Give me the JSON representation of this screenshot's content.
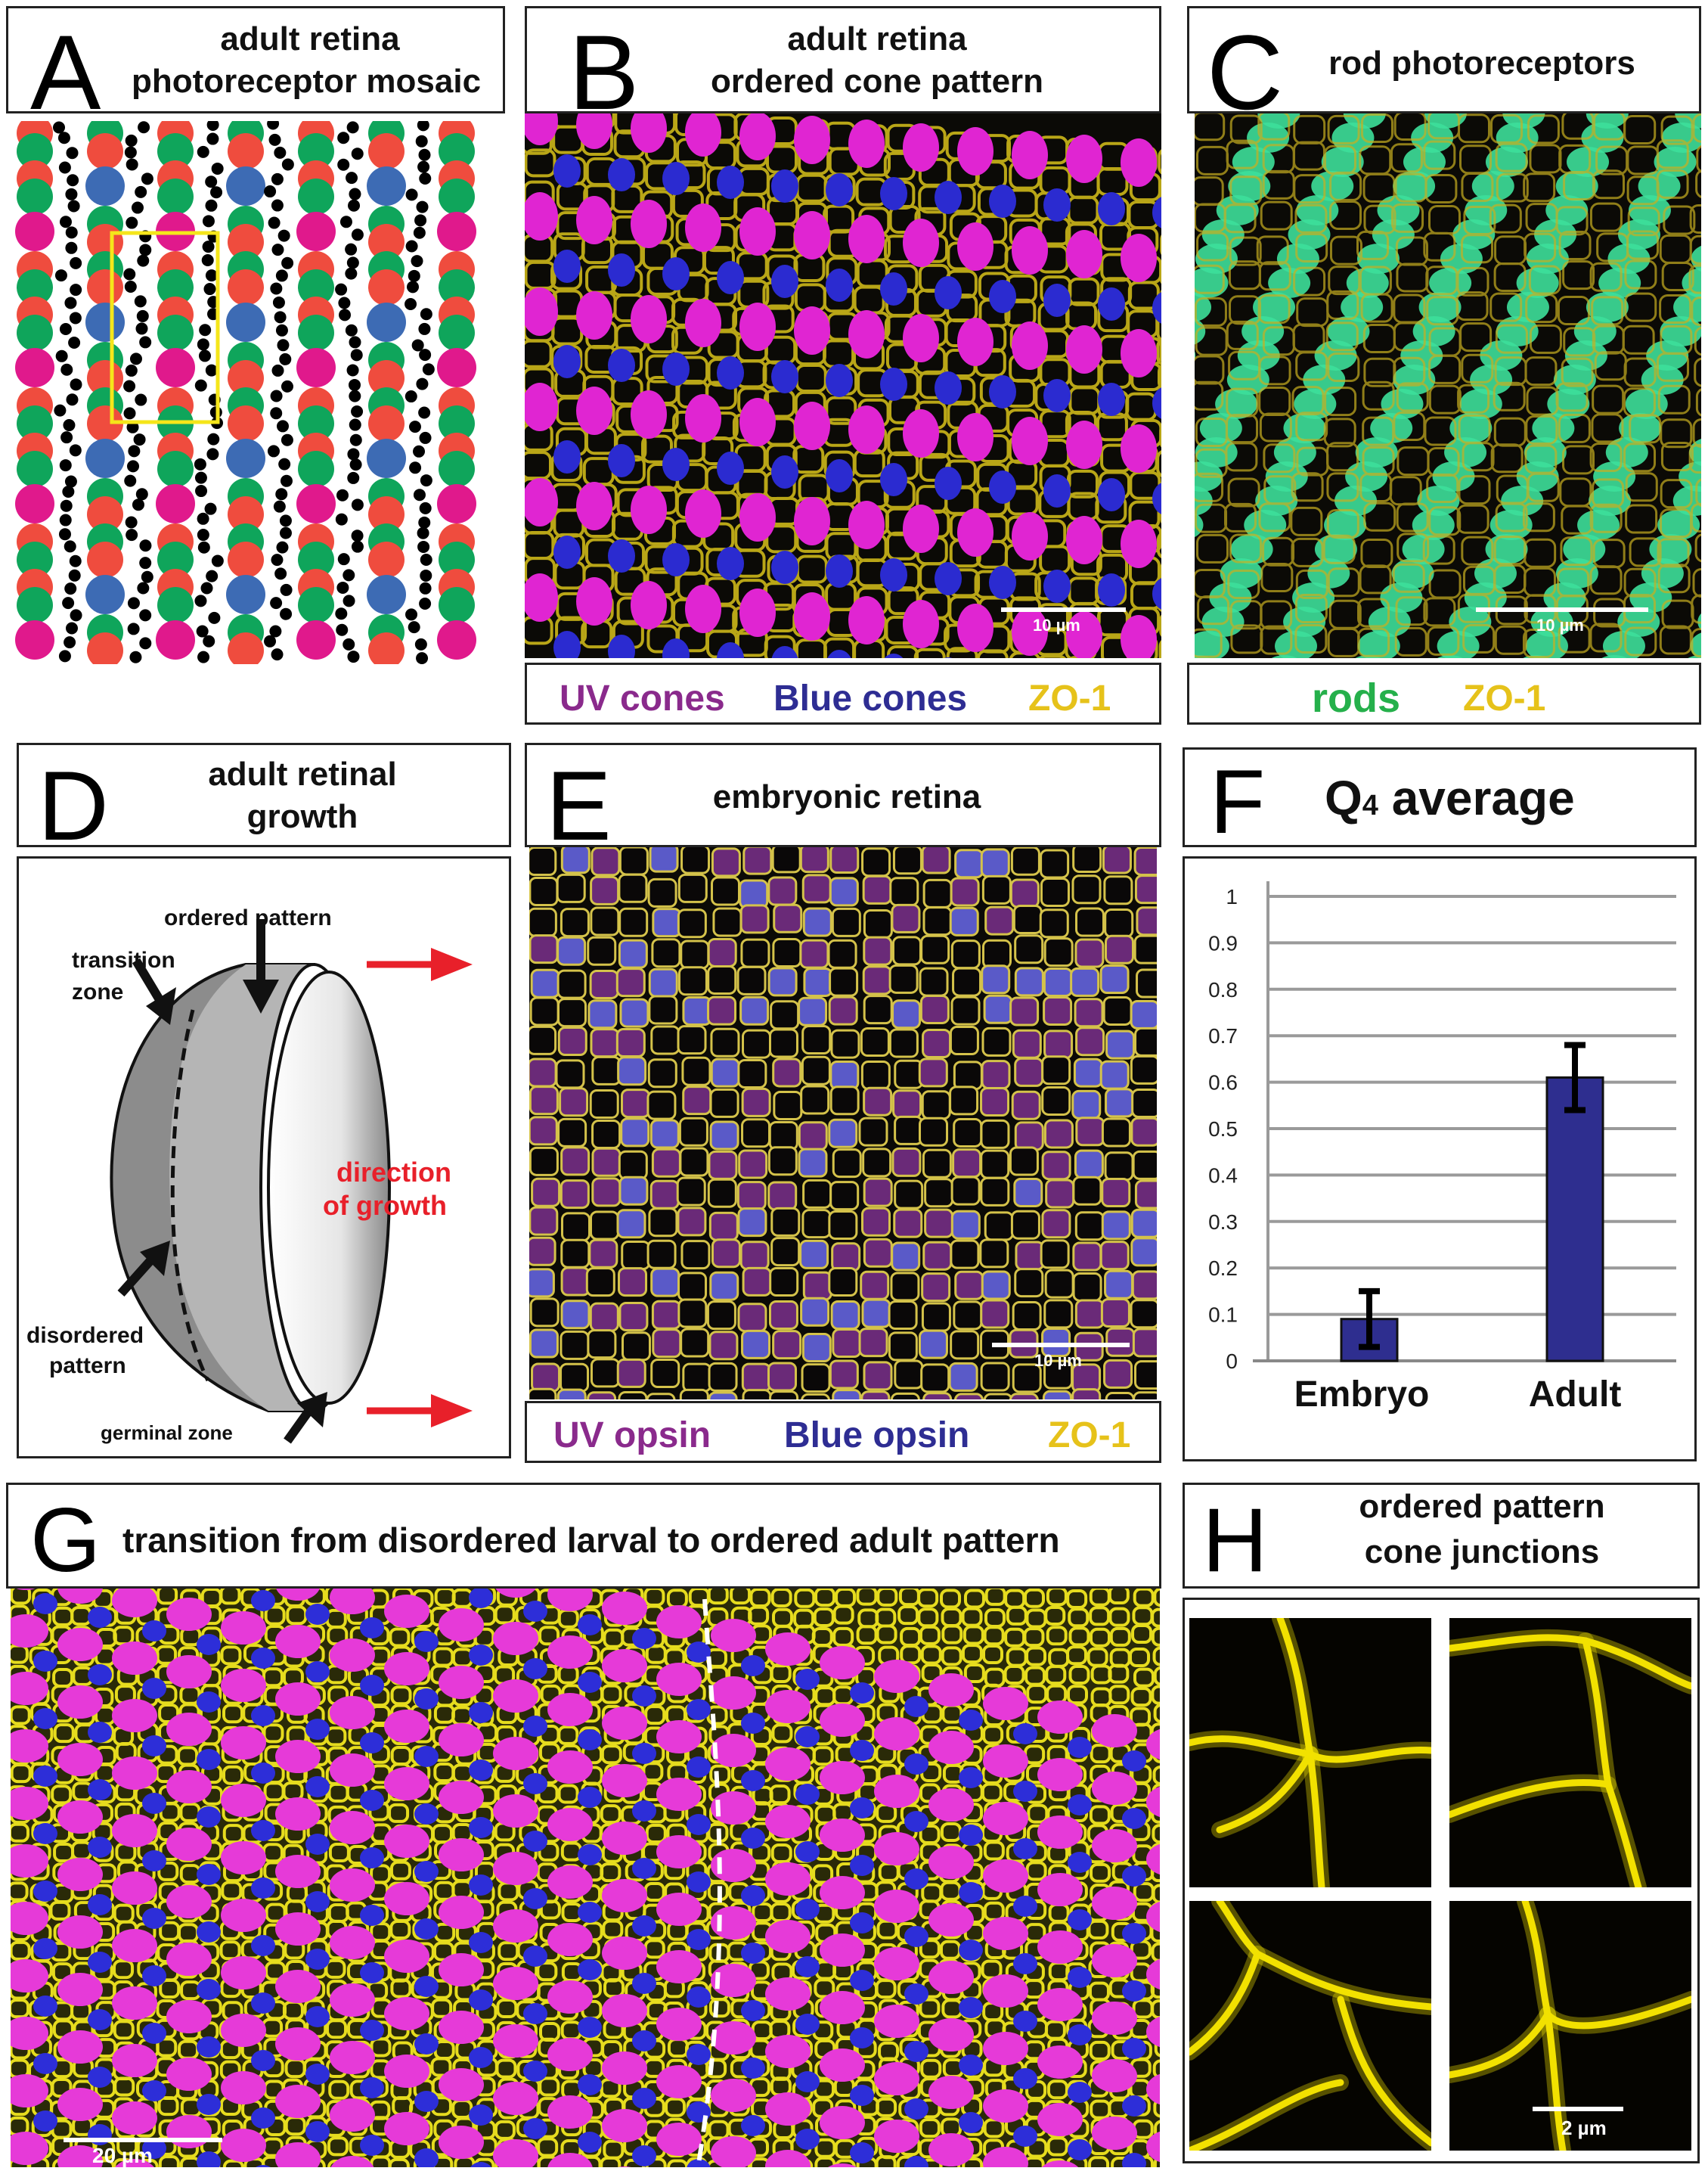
{
  "panels": {
    "A": {
      "letter": "A",
      "title_line1": "adult retina",
      "title_line2": "photoreceptor mosaic",
      "colors": {
        "red": "#ef4c3e",
        "green": "#0fa55b",
        "blue": "#3d6bb4",
        "magenta": "#e0198c",
        "rod": "#000000",
        "highlight": "#f5e61a"
      }
    },
    "B": {
      "letter": "B",
      "title_line1": "adult retina",
      "title_line2": "ordered cone pattern",
      "scale": "10 µm",
      "legend": [
        {
          "text": "UV cones",
          "color": "#8a2a8c"
        },
        {
          "text": "Blue cones",
          "color": "#2e2d93"
        },
        {
          "text": "ZO-1",
          "color": "#e6c21a"
        }
      ]
    },
    "C": {
      "letter": "C",
      "title": "rod photoreceptors",
      "scale": "10 µm",
      "legend": [
        {
          "text": "rods",
          "color": "#25b04b"
        },
        {
          "text": "ZO-1",
          "color": "#e6c21a"
        }
      ]
    },
    "D": {
      "letter": "D",
      "title_line1": "adult retinal",
      "title_line2": "growth",
      "labels": {
        "ordered": "ordered pattern",
        "transition1": "transition",
        "transition2": "zone",
        "direction1": "direction",
        "direction2": "of growth",
        "disordered1": "disordered",
        "disordered2": "pattern",
        "germinal": "germinal zone"
      },
      "arrow_color": "#e8202a"
    },
    "E": {
      "letter": "E",
      "title": "embryonic retina",
      "scale": "10 µm",
      "legend": [
        {
          "text": "UV opsin",
          "color": "#8a2a8c"
        },
        {
          "text": "Blue opsin",
          "color": "#2e2d93"
        },
        {
          "text": "ZO-1",
          "color": "#e6c21a"
        }
      ]
    },
    "F": {
      "letter": "F",
      "title": "Q",
      "title_sub": "4",
      "title_rest": " average"
    },
    "G": {
      "letter": "G",
      "title": "transition from disordered larval to ordered adult pattern",
      "scale": "20 µm"
    },
    "H": {
      "letter": "H",
      "title_line1": "ordered pattern",
      "title_line2": "cone junctions",
      "scale": "2 µm"
    }
  },
  "chart_data": {
    "type": "bar",
    "categories": [
      "Embryo",
      "Adult"
    ],
    "values": [
      0.09,
      0.61
    ],
    "errors": [
      0.06,
      0.07
    ],
    "ylim": [
      0,
      1
    ],
    "yticks": [
      "0",
      "0.1",
      "0.2",
      "0.3",
      "0.4",
      "0.5",
      "0.6",
      "0.7",
      "0.8",
      "0.9",
      "1"
    ],
    "bar_color": "#2e2e8f",
    "grid": true
  }
}
